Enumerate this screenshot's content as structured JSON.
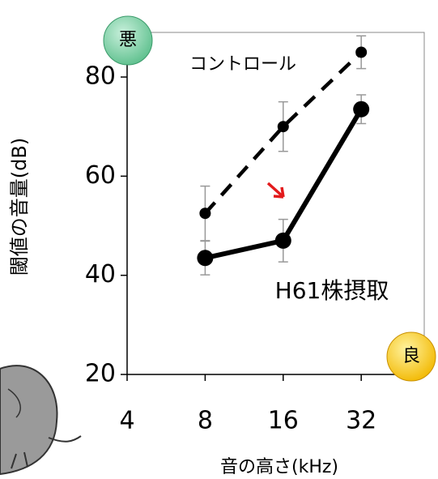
{
  "chart_data": {
    "type": "line",
    "x_label": "音の高さ(kHz)",
    "y_label": "閾値の音量(dB)",
    "x": [
      8,
      16,
      32
    ],
    "x_log2": true,
    "xlim": [
      4,
      56
    ],
    "xticks": [
      4,
      8,
      16,
      32
    ],
    "ylim": [
      20,
      89
    ],
    "yticks": [
      20,
      40,
      60,
      80
    ],
    "series": [
      {
        "name": "コントロール",
        "color": "#000000",
        "style": "dashed",
        "values": [
          52.5,
          70,
          85
        ],
        "errors": [
          5.5,
          5,
          3.3
        ]
      },
      {
        "name": "H61株摂取",
        "color": "#000000",
        "style": "solid",
        "values": [
          43.5,
          47,
          73.5
        ],
        "errors": [
          3.4,
          4.3,
          2.9
        ]
      }
    ],
    "badges": [
      "悪",
      "良"
    ]
  }
}
